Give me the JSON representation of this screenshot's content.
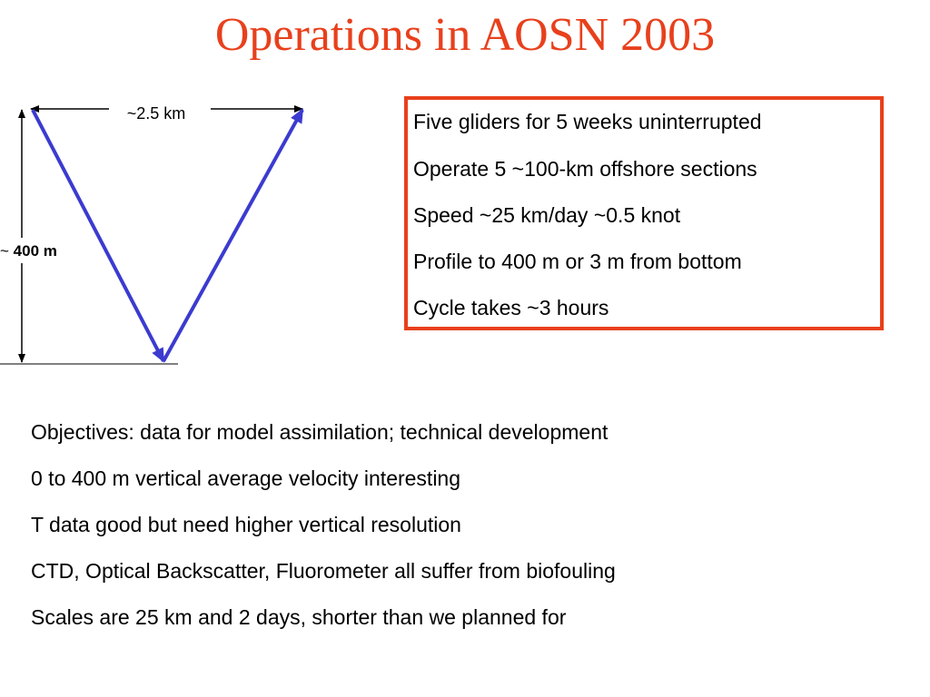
{
  "title": "Operations in AOSN 2003",
  "colors": {
    "title": "#e8401c",
    "box_border": "#e8401c",
    "track": "#3b3bd0",
    "text": "#000000"
  },
  "diagram": {
    "width_label": "~2.5 km",
    "depth_label_prefix": "~",
    "depth_label_value": "400 m"
  },
  "info_box": {
    "lines": [
      "Five gliders for 5 weeks uninterrupted",
      "Operate 5  ~100-km offshore sections",
      "Speed  ~25 km/day  ~0.5 knot",
      "Profile to 400 m or 3 m from bottom",
      "Cycle takes  ~3 hours"
    ]
  },
  "notes": [
    "Objectives: data for model assimilation; technical development",
    "0 to 400 m vertical average velocity interesting",
    "T data good but need higher vertical resolution",
    "CTD, Optical Backscatter, Fluorometer all suffer from biofouling",
    "Scales are 25 km and 2 days, shorter than we planned for"
  ]
}
